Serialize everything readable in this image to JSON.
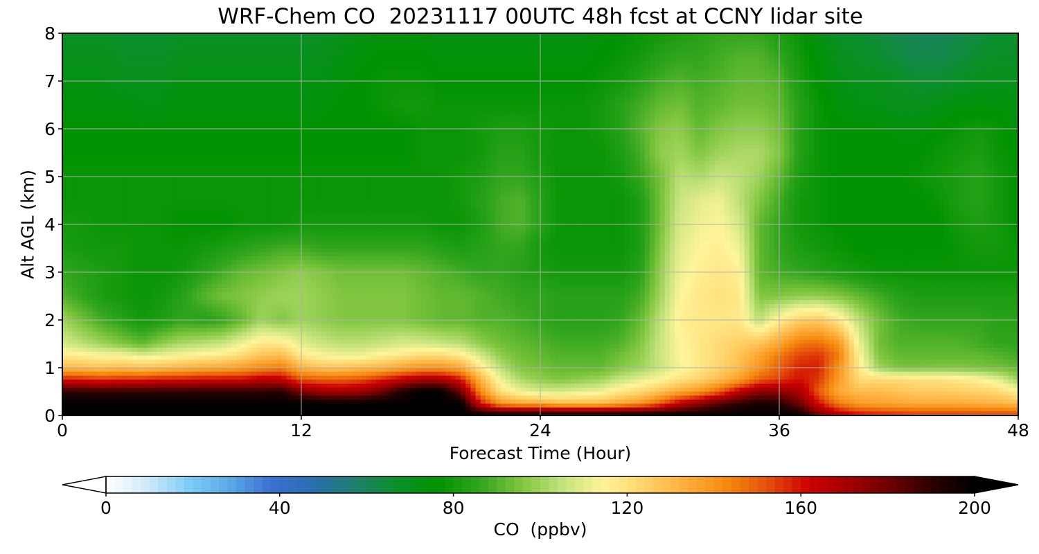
{
  "chart_data": {
    "type": "heatmap",
    "title": "WRF-Chem CO  20231117 00UTC 48h fcst at CCNY lidar site",
    "xlabel": "Forecast Time (Hour)",
    "ylabel": "Alt AGL (km)",
    "xlim": [
      0,
      48
    ],
    "ylim": [
      0,
      8
    ],
    "xticks": [
      0,
      12,
      24,
      36,
      48
    ],
    "yticks": [
      0,
      1,
      2,
      3,
      4,
      5,
      6,
      7,
      8
    ],
    "grid": true,
    "z_units_label": "CO  (ppbv)",
    "colorbar": {
      "range": [
        0,
        200
      ],
      "ticks": [
        0,
        40,
        80,
        120,
        160,
        200
      ],
      "extend": "both",
      "colors": [
        "#ffffff",
        "#cfeafa",
        "#7fcdf5",
        "#5aa9e6",
        "#3b6fd1",
        "#2a6fb0",
        "#1f7f6f",
        "#0a8f2a",
        "#009200",
        "#2fa41c",
        "#7cc43c",
        "#c2e27a",
        "#fff59a",
        "#ffd36b",
        "#ffae3c",
        "#f58a10",
        "#e5500c",
        "#cc0000",
        "#a00000",
        "#6a0000",
        "#2a0000",
        "#000000"
      ]
    },
    "hours": [
      0,
      1,
      2,
      3,
      4,
      5,
      6,
      7,
      8,
      9,
      10,
      11,
      12,
      13,
      14,
      15,
      16,
      17,
      18,
      19,
      20,
      21,
      22,
      23,
      24,
      25,
      26,
      27,
      28,
      29,
      30,
      31,
      32,
      33,
      34,
      35,
      36,
      37,
      38,
      39,
      40,
      41,
      42,
      43,
      44,
      45,
      46,
      47,
      48
    ],
    "altitudes_km": [
      0,
      0.25,
      0.5,
      0.75,
      1,
      1.25,
      1.5,
      2,
      2.5,
      3,
      3.5,
      4,
      4.5,
      5,
      5.5,
      6,
      6.5,
      7,
      7.5,
      8
    ],
    "co_ppbv": [
      [
        200,
        200,
        200,
        200,
        200,
        200,
        200,
        200,
        200,
        200,
        200,
        200,
        200,
        200,
        200,
        200,
        200,
        200,
        200,
        200,
        200,
        200,
        200,
        200,
        200,
        200,
        200,
        200,
        200,
        200,
        200,
        200,
        200,
        200,
        200,
        200,
        200,
        200,
        180,
        168,
        162,
        160,
        158,
        156,
        156,
        156,
        155,
        155,
        155
      ],
      [
        200,
        200,
        200,
        200,
        200,
        200,
        200,
        200,
        200,
        200,
        200,
        200,
        200,
        200,
        200,
        200,
        200,
        200,
        200,
        200,
        200,
        160,
        140,
        135,
        135,
        130,
        130,
        130,
        135,
        140,
        150,
        165,
        175,
        185,
        190,
        195,
        192,
        180,
        160,
        145,
        138,
        136,
        135,
        134,
        134,
        134,
        133,
        132,
        130
      ],
      [
        190,
        190,
        190,
        190,
        190,
        190,
        190,
        190,
        190,
        190,
        190,
        192,
        178,
        172,
        170,
        172,
        180,
        192,
        200,
        200,
        180,
        142,
        120,
        112,
        108,
        108,
        110,
        112,
        118,
        122,
        128,
        135,
        140,
        150,
        165,
        175,
        175,
        170,
        150,
        134,
        130,
        130,
        128,
        126,
        126,
        125,
        124,
        122,
        115
      ],
      [
        160,
        158,
        156,
        158,
        158,
        160,
        160,
        162,
        162,
        162,
        166,
        165,
        152,
        150,
        150,
        152,
        158,
        165,
        170,
        170,
        160,
        132,
        112,
        102,
        98,
        96,
        98,
        100,
        106,
        110,
        114,
        120,
        124,
        130,
        138,
        150,
        155,
        160,
        155,
        138,
        122,
        122,
        122,
        120,
        120,
        118,
        115,
        110,
        100
      ],
      [
        130,
        130,
        128,
        130,
        128,
        130,
        132,
        134,
        135,
        138,
        142,
        145,
        132,
        128,
        128,
        130,
        132,
        136,
        140,
        140,
        135,
        118,
        104,
        96,
        94,
        92,
        92,
        92,
        96,
        100,
        106,
        112,
        118,
        124,
        130,
        140,
        150,
        158,
        158,
        140,
        118,
        100,
        95,
        95,
        96,
        96,
        95,
        94,
        92
      ],
      [
        118,
        116,
        114,
        114,
        110,
        112,
        114,
        116,
        118,
        122,
        128,
        130,
        118,
        114,
        112,
        112,
        116,
        118,
        122,
        122,
        118,
        108,
        98,
        94,
        92,
        90,
        90,
        90,
        94,
        98,
        106,
        114,
        118,
        122,
        128,
        136,
        146,
        154,
        156,
        145,
        115,
        96,
        92,
        92,
        92,
        92,
        92,
        90,
        88
      ],
      [
        108,
        104,
        100,
        96,
        92,
        98,
        102,
        104,
        106,
        112,
        118,
        118,
        110,
        106,
        104,
        104,
        106,
        108,
        108,
        106,
        104,
        98,
        94,
        92,
        90,
        88,
        88,
        88,
        90,
        96,
        106,
        114,
        118,
        122,
        125,
        128,
        136,
        146,
        148,
        140,
        112,
        94,
        90,
        90,
        90,
        90,
        88,
        86,
        86
      ],
      [
        100,
        94,
        88,
        84,
        80,
        82,
        86,
        84,
        86,
        92,
        100,
        96,
        100,
        98,
        96,
        96,
        96,
        96,
        94,
        92,
        92,
        90,
        90,
        88,
        86,
        84,
        84,
        84,
        86,
        92,
        104,
        116,
        118,
        118,
        118,
        104,
        116,
        124,
        126,
        118,
        104,
        94,
        88,
        86,
        86,
        86,
        86,
        84,
        84
      ],
      [
        90,
        86,
        82,
        80,
        78,
        80,
        84,
        90,
        94,
        96,
        98,
        100,
        100,
        98,
        96,
        96,
        96,
        96,
        94,
        92,
        92,
        90,
        88,
        86,
        86,
        84,
        84,
        84,
        84,
        88,
        100,
        114,
        118,
        120,
        118,
        96,
        96,
        98,
        98,
        96,
        92,
        88,
        84,
        82,
        82,
        82,
        82,
        82,
        82
      ],
      [
        86,
        84,
        82,
        80,
        78,
        78,
        80,
        84,
        88,
        92,
        94,
        96,
        98,
        96,
        94,
        94,
        94,
        94,
        92,
        90,
        88,
        86,
        86,
        84,
        82,
        80,
        80,
        80,
        80,
        84,
        98,
        112,
        116,
        118,
        116,
        92,
        88,
        86,
        84,
        82,
        80,
        78,
        78,
        78,
        78,
        78,
        78,
        78,
        78
      ],
      [
        82,
        80,
        80,
        80,
        78,
        78,
        78,
        80,
        82,
        84,
        86,
        88,
        88,
        86,
        86,
        86,
        86,
        86,
        86,
        84,
        82,
        84,
        86,
        86,
        80,
        78,
        78,
        78,
        78,
        82,
        96,
        110,
        114,
        116,
        112,
        92,
        86,
        82,
        80,
        78,
        76,
        76,
        76,
        76,
        76,
        78,
        80,
        80,
        78
      ],
      [
        80,
        80,
        78,
        78,
        78,
        78,
        76,
        76,
        76,
        78,
        78,
        78,
        80,
        80,
        80,
        80,
        80,
        80,
        80,
        78,
        78,
        82,
        88,
        90,
        84,
        78,
        78,
        78,
        78,
        82,
        94,
        108,
        112,
        114,
        108,
        92,
        86,
        80,
        78,
        76,
        76,
        76,
        76,
        76,
        76,
        80,
        82,
        80,
        76
      ],
      [
        78,
        78,
        78,
        78,
        78,
        78,
        78,
        78,
        78,
        78,
        78,
        78,
        78,
        78,
        78,
        78,
        78,
        78,
        78,
        78,
        80,
        84,
        88,
        90,
        84,
        78,
        78,
        78,
        78,
        82,
        94,
        106,
        110,
        112,
        104,
        96,
        88,
        80,
        78,
        76,
        76,
        76,
        76,
        76,
        78,
        82,
        84,
        80,
        76
      ],
      [
        78,
        78,
        78,
        78,
        78,
        78,
        78,
        78,
        78,
        78,
        78,
        78,
        78,
        78,
        78,
        78,
        78,
        78,
        78,
        78,
        80,
        82,
        86,
        86,
        82,
        78,
        78,
        78,
        80,
        86,
        94,
        104,
        102,
        106,
        104,
        100,
        92,
        82,
        78,
        76,
        76,
        76,
        76,
        78,
        80,
        82,
        84,
        80,
        76
      ],
      [
        76,
        76,
        76,
        76,
        76,
        76,
        76,
        76,
        76,
        76,
        76,
        76,
        76,
        76,
        76,
        76,
        76,
        76,
        78,
        78,
        78,
        80,
        84,
        84,
        80,
        78,
        78,
        78,
        82,
        88,
        98,
        100,
        96,
        100,
        102,
        102,
        96,
        84,
        78,
        76,
        76,
        76,
        76,
        76,
        78,
        80,
        82,
        78,
        76
      ],
      [
        76,
        76,
        76,
        76,
        76,
        76,
        76,
        76,
        76,
        76,
        76,
        76,
        76,
        76,
        76,
        76,
        76,
        76,
        78,
        78,
        78,
        80,
        82,
        82,
        80,
        78,
        78,
        80,
        84,
        90,
        96,
        98,
        92,
        96,
        98,
        98,
        94,
        84,
        78,
        76,
        76,
        76,
        74,
        74,
        76,
        78,
        80,
        78,
        74
      ],
      [
        74,
        74,
        74,
        74,
        72,
        72,
        74,
        74,
        74,
        74,
        74,
        74,
        74,
        74,
        76,
        76,
        78,
        80,
        80,
        78,
        78,
        78,
        78,
        78,
        78,
        78,
        78,
        80,
        84,
        88,
        92,
        94,
        90,
        92,
        94,
        94,
        92,
        84,
        78,
        74,
        72,
        72,
        70,
        70,
        72,
        74,
        74,
        74,
        72
      ],
      [
        72,
        72,
        72,
        70,
        70,
        70,
        72,
        72,
        72,
        72,
        72,
        72,
        72,
        72,
        74,
        76,
        78,
        78,
        78,
        76,
        76,
        76,
        76,
        76,
        76,
        76,
        76,
        78,
        80,
        84,
        88,
        90,
        88,
        90,
        92,
        92,
        90,
        82,
        76,
        72,
        70,
        70,
        68,
        66,
        66,
        68,
        70,
        70,
        70
      ],
      [
        70,
        70,
        70,
        68,
        68,
        68,
        70,
        70,
        70,
        70,
        70,
        70,
        70,
        70,
        72,
        74,
        76,
        76,
        76,
        74,
        74,
        74,
        74,
        74,
        74,
        74,
        74,
        76,
        78,
        80,
        84,
        86,
        86,
        88,
        90,
        90,
        86,
        80,
        74,
        70,
        68,
        66,
        64,
        62,
        62,
        64,
        66,
        68,
        68
      ],
      [
        68,
        68,
        68,
        66,
        66,
        66,
        68,
        68,
        68,
        68,
        68,
        68,
        68,
        68,
        70,
        72,
        74,
        74,
        74,
        72,
        72,
        72,
        72,
        72,
        72,
        72,
        72,
        74,
        76,
        78,
        80,
        82,
        84,
        86,
        86,
        86,
        82,
        78,
        72,
        68,
        66,
        64,
        62,
        60,
        60,
        62,
        64,
        66,
        66
      ]
    ]
  }
}
